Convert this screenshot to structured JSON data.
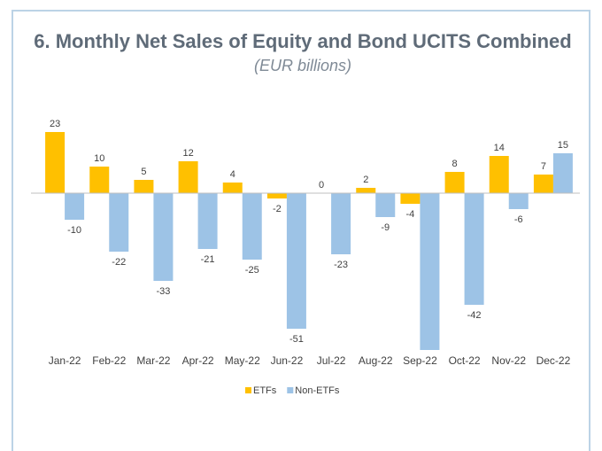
{
  "chart_data": {
    "type": "bar",
    "title": "6. Monthly Net Sales of Equity and Bond UCITS Combined",
    "subtitle": "(EUR billions)",
    "categories": [
      "Jan-22",
      "Feb-22",
      "Mar-22",
      "Apr-22",
      "May-22",
      "Jun-22",
      "Jul-22",
      "Aug-22",
      "Sep-22",
      "Oct-22",
      "Nov-22",
      "Dec-22"
    ],
    "series": [
      {
        "name": "ETFs",
        "color": "#ffc000",
        "values": [
          23,
          10,
          5,
          12,
          4,
          -2,
          0,
          2,
          -4,
          8,
          14,
          7
        ]
      },
      {
        "name": "Non-ETFs",
        "color": "#9dc3e6",
        "values": [
          -10,
          -22,
          -33,
          -21,
          -25,
          -51,
          -23,
          -9,
          -59,
          -42,
          -6,
          15
        ],
        "value_labels": [
          "-10",
          "-22",
          "-33",
          "-21",
          "-25",
          "-51",
          "-23",
          "-9",
          null,
          "-42",
          "-6",
          "15"
        ]
      }
    ],
    "ylim": [
      -60,
      25
    ],
    "legend": "bottom"
  }
}
